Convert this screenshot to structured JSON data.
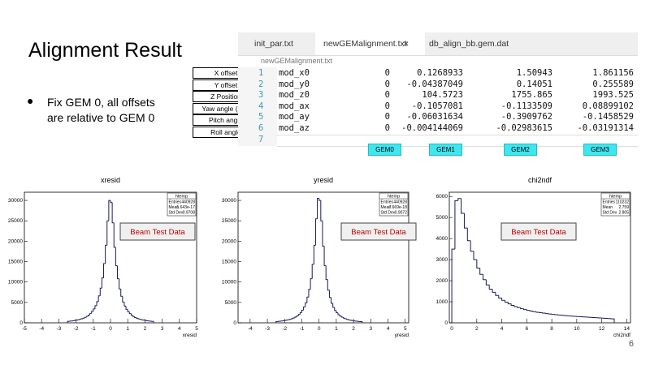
{
  "slide": {
    "title": "Alignment Result",
    "bullet": "Fix GEM 0, all offsets are relative to GEM 0",
    "page_number": "6"
  },
  "labels": [
    "X offset",
    "Y offset",
    "Z Position",
    "Yaw angle (rad)",
    "Pitch angle",
    "Roll angle"
  ],
  "editor": {
    "tabs": [
      "init_par.txt",
      "newGEMalignment.txt",
      "db_align_bb.gem.dat"
    ],
    "close_icon": "✕",
    "path": "newGEMalignment.txt",
    "line_numbers": [
      "1",
      "2",
      "3",
      "4",
      "5",
      "6",
      "7"
    ],
    "rows": [
      [
        "mod_x0",
        "0",
        "0.1268933",
        "1.50943",
        "1.861156"
      ],
      [
        "mod_y0",
        "0",
        "-0.04387049",
        "0.14051",
        "0.255589"
      ],
      [
        "mod_z0",
        "0",
        "104.5723",
        "1755.865",
        "1993.525"
      ],
      [
        "mod_ax",
        "0",
        "-0.1057081",
        "-0.1133509",
        "0.08899102"
      ],
      [
        "mod_ay",
        "0",
        "-0.06031634",
        "-0.3909762",
        "-0.1458529"
      ],
      [
        "mod_az",
        "0",
        "-0.004144069",
        "-0.02983615",
        "-0.03191314"
      ]
    ]
  },
  "gem_labels": [
    "GEM0",
    "GEM1",
    "GEM2",
    "GEM3"
  ],
  "chart_data": [
    {
      "type": "histogram",
      "title": "xresid",
      "x_label": "xresid",
      "annotation": "Beam Test Data",
      "color": "#1a1a5e",
      "stats": {
        "title": "htemp",
        "rows": [
          [
            "Entries",
            "440928"
          ],
          [
            "Mean",
            "1.643e-17"
          ],
          [
            "Std Dev",
            "0.9708"
          ]
        ]
      },
      "xlim": [
        -5,
        5
      ],
      "xticks": [
        -5,
        -4,
        -3,
        -2,
        -1,
        0,
        1,
        2,
        3,
        4,
        5
      ],
      "ylim": [
        0,
        32000
      ],
      "yticks": [
        0,
        5000,
        10000,
        15000,
        20000,
        25000,
        30000
      ],
      "bins": [
        -2.5,
        -2.4,
        -2.3,
        -2.2,
        -2.1,
        -2,
        -1.9,
        -1.8,
        -1.7,
        -1.6,
        -1.5,
        -1.4,
        -1.3,
        -1.2,
        -1.1,
        -1,
        -0.9,
        -0.8,
        -0.7,
        -0.6,
        -0.5,
        -0.4,
        -0.3,
        -0.2,
        -0.1,
        0,
        0.1,
        0.2,
        0.3,
        0.4,
        0.5,
        0.6,
        0.7,
        0.8,
        0.9,
        1,
        1.1,
        1.2,
        1.3,
        1.4,
        1.5,
        1.6,
        1.7,
        1.8,
        1.9,
        2,
        2.1,
        2.2,
        2.3,
        2.4,
        2.5
      ],
      "values": [
        350,
        400,
        450,
        500,
        570,
        650,
        750,
        860,
        1000,
        1150,
        1350,
        1600,
        1900,
        2300,
        2800,
        3400,
        4200,
        5200,
        6600,
        8500,
        11000,
        14500,
        19000,
        25000,
        30000,
        29500,
        24500,
        18500,
        14000,
        10800,
        8300,
        6500,
        5100,
        4100,
        3300,
        2700,
        2250,
        1850,
        1550,
        1300,
        1120,
        980,
        850,
        740,
        640,
        560,
        490,
        440,
        390,
        340
      ]
    },
    {
      "type": "histogram",
      "title": "yresid",
      "x_label": "yresid",
      "annotation": "Beam Test Data",
      "color": "#1a1a5e",
      "stats": {
        "title": "htemp",
        "rows": [
          [
            "Entries",
            "440928"
          ],
          [
            "Mean",
            "7.669e-18"
          ],
          [
            "Std Dev",
            "0.9072"
          ]
        ]
      },
      "xlim": [
        -4.7,
        5.2
      ],
      "xticks": [
        -4,
        -3,
        -2,
        -1,
        0,
        1,
        2,
        3,
        4,
        5
      ],
      "ylim": [
        0,
        32000
      ],
      "yticks": [
        0,
        5000,
        10000,
        15000,
        20000,
        25000,
        30000
      ],
      "bins": [
        -2.5,
        -2.4,
        -2.3,
        -2.2,
        -2.1,
        -2,
        -1.9,
        -1.8,
        -1.7,
        -1.6,
        -1.5,
        -1.4,
        -1.3,
        -1.2,
        -1.1,
        -1,
        -0.9,
        -0.8,
        -0.7,
        -0.6,
        -0.5,
        -0.4,
        -0.3,
        -0.2,
        -0.1,
        0,
        0.1,
        0.2,
        0.3,
        0.4,
        0.5,
        0.6,
        0.7,
        0.8,
        0.9,
        1,
        1.1,
        1.2,
        1.3,
        1.4,
        1.5,
        1.6,
        1.7,
        1.8,
        1.9,
        2,
        2.1,
        2.2,
        2.3,
        2.4,
        2.5
      ],
      "values": [
        300,
        340,
        390,
        440,
        500,
        570,
        660,
        760,
        880,
        1020,
        1200,
        1420,
        1700,
        2050,
        2500,
        3100,
        3900,
        4900,
        6300,
        8200,
        10800,
        14300,
        19000,
        25500,
        30500,
        30000,
        25000,
        18800,
        14000,
        10600,
        8000,
        6200,
        4800,
        3800,
        3000,
        2450,
        2000,
        1650,
        1380,
        1160,
        990,
        850,
        730,
        630,
        550,
        480,
        420,
        370,
        330,
        290
      ]
    },
    {
      "type": "histogram",
      "title": "chi2ndf",
      "x_label": "chi2ndf",
      "annotation": "Beam Test Data",
      "color": "#1a1a5e",
      "stats": {
        "title": "htemp",
        "rows": [
          [
            "Entries",
            "110232"
          ],
          [
            "Mean",
            "2.759"
          ],
          [
            "Std Dev",
            "2.805"
          ]
        ]
      },
      "xlim": [
        -0.2,
        14.3
      ],
      "xticks": [
        0,
        2,
        4,
        6,
        8,
        10,
        12,
        14
      ],
      "ylim": [
        0,
        6200
      ],
      "yticks": [
        0,
        1000,
        2000,
        3000,
        4000,
        5000,
        6000
      ],
      "bins": [
        0,
        0.25,
        0.5,
        0.75,
        1,
        1.25,
        1.5,
        1.75,
        2,
        2.25,
        2.5,
        2.75,
        3,
        3.25,
        3.5,
        3.75,
        4,
        4.25,
        4.5,
        4.75,
        5,
        5.25,
        5.5,
        5.75,
        6,
        6.25,
        6.5,
        6.75,
        7,
        7.25,
        7.5,
        7.75,
        8,
        8.25,
        8.5,
        8.75,
        9,
        9.25,
        9.5,
        9.75,
        10,
        10.25,
        10.5,
        10.75,
        11,
        11.25,
        11.5,
        11.75,
        12,
        12.25,
        12.5,
        12.75,
        13
      ],
      "values": [
        3500,
        5800,
        5900,
        5200,
        4500,
        3900,
        3400,
        3000,
        2600,
        2300,
        2050,
        1800,
        1600,
        1450,
        1300,
        1180,
        1070,
        980,
        900,
        830,
        770,
        720,
        670,
        630,
        590,
        560,
        530,
        500,
        480,
        460,
        440,
        420,
        400,
        385,
        370,
        355,
        340,
        330,
        320,
        310,
        300,
        290,
        280,
        270,
        260,
        250,
        240,
        230,
        220,
        210,
        200,
        190
      ]
    }
  ]
}
